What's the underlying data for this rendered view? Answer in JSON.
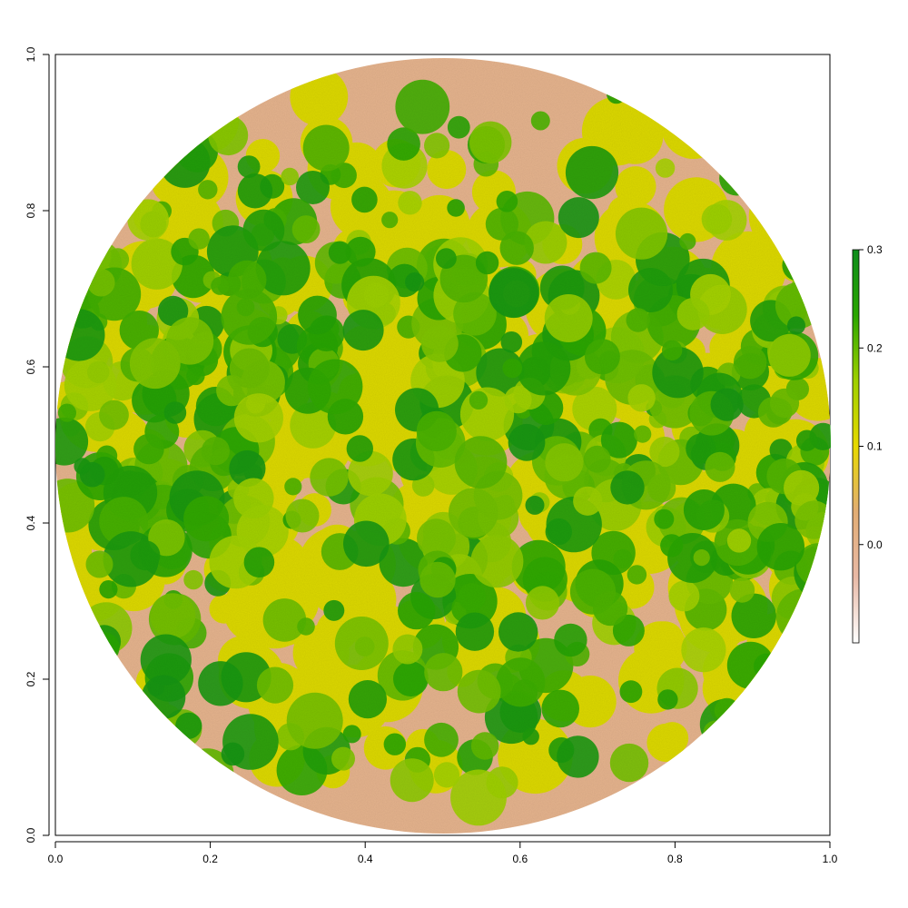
{
  "chart_data": {
    "type": "heatmap",
    "title": "",
    "xlabel": "",
    "ylabel": "",
    "xlim": [
      0,
      1
    ],
    "ylim": [
      0,
      1
    ],
    "x_ticks": [
      "0.0",
      "0.2",
      "0.4",
      "0.6",
      "0.8",
      "1.0"
    ],
    "y_ticks": [
      "0.0",
      "0.2",
      "0.4",
      "0.6",
      "0.8",
      "1.0"
    ],
    "mask": "circle",
    "legend": {
      "position": "right",
      "range": [
        -0.1,
        0.3
      ],
      "ticks": [
        "0.0",
        "0.1",
        "0.2",
        "0.3"
      ],
      "colors": [
        "#ffffff",
        "#e8b9a6",
        "#e2ad74",
        "#e7d900",
        "#9fd000",
        "#2aa600",
        "#0d8d1c"
      ]
    },
    "value_summary": {
      "background_value": 0.0,
      "canopy_value": 0.22
    }
  }
}
